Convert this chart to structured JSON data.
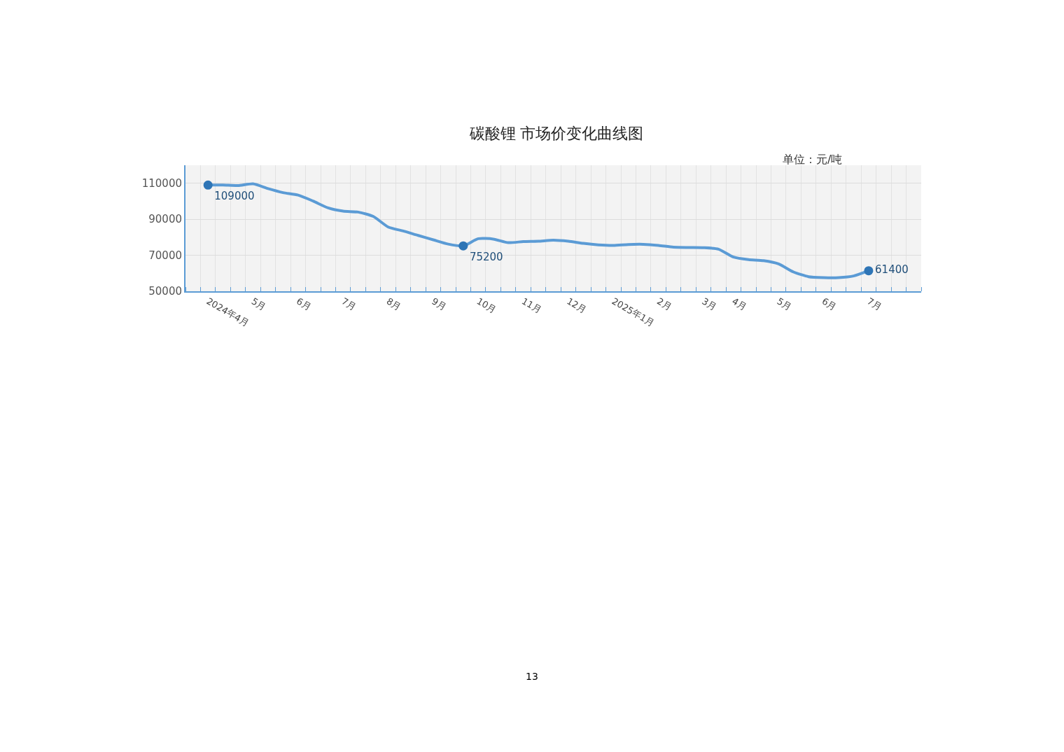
{
  "chart_data": {
    "type": "line",
    "title": "碳酸锂 市场价变化曲线图",
    "subtitle": "单位：元/吨",
    "categories": [
      null,
      "2024年4月",
      null,
      null,
      "5月",
      null,
      null,
      "6月",
      null,
      null,
      "7月",
      null,
      null,
      "8月",
      null,
      null,
      "9月",
      null,
      null,
      "10月",
      null,
      null,
      "11月",
      null,
      null,
      "12月",
      null,
      null,
      "2025年1月",
      null,
      null,
      "2月",
      null,
      null,
      "3月",
      null,
      "4月",
      null,
      null,
      "5月",
      null,
      null,
      "6月",
      null,
      null,
      "7月",
      null,
      null,
      null
    ],
    "series": [
      {
        "color": "#5b9bd5",
        "values": [
          null,
          109000,
          109000,
          108700,
          109700,
          107000,
          104800,
          103400,
          100100,
          96300,
          94500,
          94000,
          91600,
          85700,
          83500,
          81000,
          78600,
          76200,
          75200,
          79200,
          79000,
          77000,
          77600,
          77800,
          78400,
          77800,
          76600,
          75800,
          75500,
          76000,
          76100,
          75500,
          74500,
          74300,
          74200,
          73400,
          69000,
          67600,
          67000,
          65200,
          60700,
          58100,
          57600,
          57600,
          58500,
          61400,
          null,
          null,
          null
        ],
        "value_labels": [
          null,
          "109000",
          null,
          null,
          null,
          null,
          null,
          null,
          null,
          null,
          null,
          null,
          null,
          null,
          null,
          null,
          null,
          null,
          "75200",
          null,
          null,
          null,
          null,
          null,
          null,
          null,
          null,
          null,
          null,
          null,
          null,
          null,
          null,
          null,
          null,
          null,
          null,
          null,
          null,
          null,
          null,
          null,
          null,
          null,
          null,
          "61400",
          null,
          null,
          null
        ]
      }
    ],
    "ylim": [
      50000,
      120000
    ],
    "yticks": [
      50000,
      70000,
      90000,
      110000
    ],
    "grid": true,
    "line_style": "solid",
    "annotations": [
      "13"
    ]
  }
}
